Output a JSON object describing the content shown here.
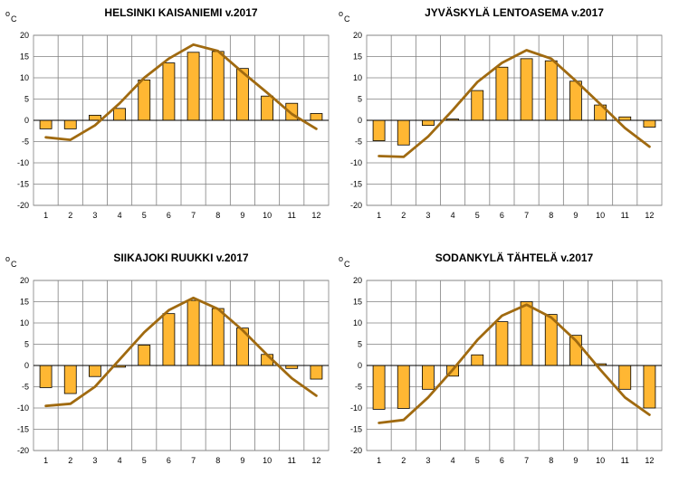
{
  "chart_data": [
    {
      "type": "bar",
      "title": "HELSINKI KAISANIEMI v.2017",
      "unit": "°C",
      "unit_degree": "o",
      "unit_letter": "C",
      "categories": [
        "1",
        "2",
        "3",
        "4",
        "5",
        "6",
        "7",
        "8",
        "9",
        "10",
        "11",
        "12"
      ],
      "ylim": [
        -20,
        20
      ],
      "yticks": [
        "20",
        "15",
        "10",
        "5",
        "0",
        "-5",
        "-10",
        "-15",
        "-20"
      ],
      "grid": true,
      "series": [
        {
          "type": "bar",
          "values": [
            -2.0,
            -2.0,
            1.2,
            2.8,
            9.5,
            13.5,
            16.0,
            16.2,
            12.2,
            5.7,
            4.0,
            1.6
          ]
        },
        {
          "type": "line",
          "values": [
            -4.0,
            -4.6,
            -1.2,
            4.0,
            10.0,
            14.5,
            17.8,
            16.3,
            11.3,
            6.5,
            1.5,
            -2.0
          ]
        }
      ]
    },
    {
      "type": "bar",
      "title": "JYVÄSKYLÄ LENTOASEMA v.2017",
      "unit": "°C",
      "unit_degree": "o",
      "unit_letter": "C",
      "categories": [
        "1",
        "2",
        "3",
        "4",
        "5",
        "6",
        "7",
        "8",
        "9",
        "10",
        "11",
        "12"
      ],
      "ylim": [
        -20,
        20
      ],
      "yticks": [
        "20",
        "15",
        "10",
        "5",
        "0",
        "-5",
        "-10",
        "-15",
        "-20"
      ],
      "grid": true,
      "series": [
        {
          "type": "bar",
          "values": [
            -4.8,
            -5.8,
            -1.2,
            0.3,
            7.0,
            12.5,
            14.5,
            14.0,
            9.2,
            3.6,
            0.8,
            -1.6
          ]
        },
        {
          "type": "line",
          "values": [
            -8.4,
            -8.6,
            -3.8,
            2.4,
            9.0,
            13.5,
            16.5,
            14.5,
            9.3,
            3.8,
            -1.8,
            -6.2
          ]
        }
      ]
    },
    {
      "type": "bar",
      "title": "SIIKAJOKI RUUKKI v.2017",
      "unit": "°C",
      "unit_degree": "o",
      "unit_letter": "C",
      "categories": [
        "1",
        "2",
        "3",
        "4",
        "5",
        "6",
        "7",
        "8",
        "9",
        "10",
        "11",
        "12"
      ],
      "ylim": [
        -20,
        20
      ],
      "yticks": [
        "20",
        "15",
        "10",
        "5",
        "0",
        "-5",
        "-10",
        "-15",
        "-20"
      ],
      "grid": true,
      "series": [
        {
          "type": "bar",
          "values": [
            -5.2,
            -6.6,
            -2.6,
            -0.4,
            4.8,
            12.2,
            15.3,
            13.4,
            8.8,
            2.6,
            -0.7,
            -3.2
          ]
        },
        {
          "type": "line",
          "values": [
            -9.5,
            -9.0,
            -5.0,
            1.4,
            7.8,
            13.0,
            15.9,
            13.3,
            8.3,
            2.5,
            -3.0,
            -7.1
          ]
        }
      ]
    },
    {
      "type": "bar",
      "title": "SODANKYLÄ TÄHTELÄ v.2017",
      "unit": "°C",
      "unit_degree": "o",
      "unit_letter": "C",
      "categories": [
        "1",
        "2",
        "3",
        "4",
        "5",
        "6",
        "7",
        "8",
        "9",
        "10",
        "11",
        "12"
      ],
      "ylim": [
        -20,
        20
      ],
      "yticks": [
        "20",
        "15",
        "10",
        "5",
        "0",
        "-5",
        "-10",
        "-15",
        "-20"
      ],
      "grid": true,
      "series": [
        {
          "type": "bar",
          "values": [
            -10.3,
            -10.1,
            -5.6,
            -2.5,
            2.5,
            10.3,
            15.0,
            12.0,
            7.1,
            0.4,
            -5.6,
            -10.0
          ]
        },
        {
          "type": "line",
          "values": [
            -13.5,
            -12.8,
            -7.5,
            -1.0,
            6.0,
            11.7,
            14.3,
            11.3,
            5.9,
            -1.0,
            -7.5,
            -11.6
          ]
        }
      ]
    }
  ]
}
